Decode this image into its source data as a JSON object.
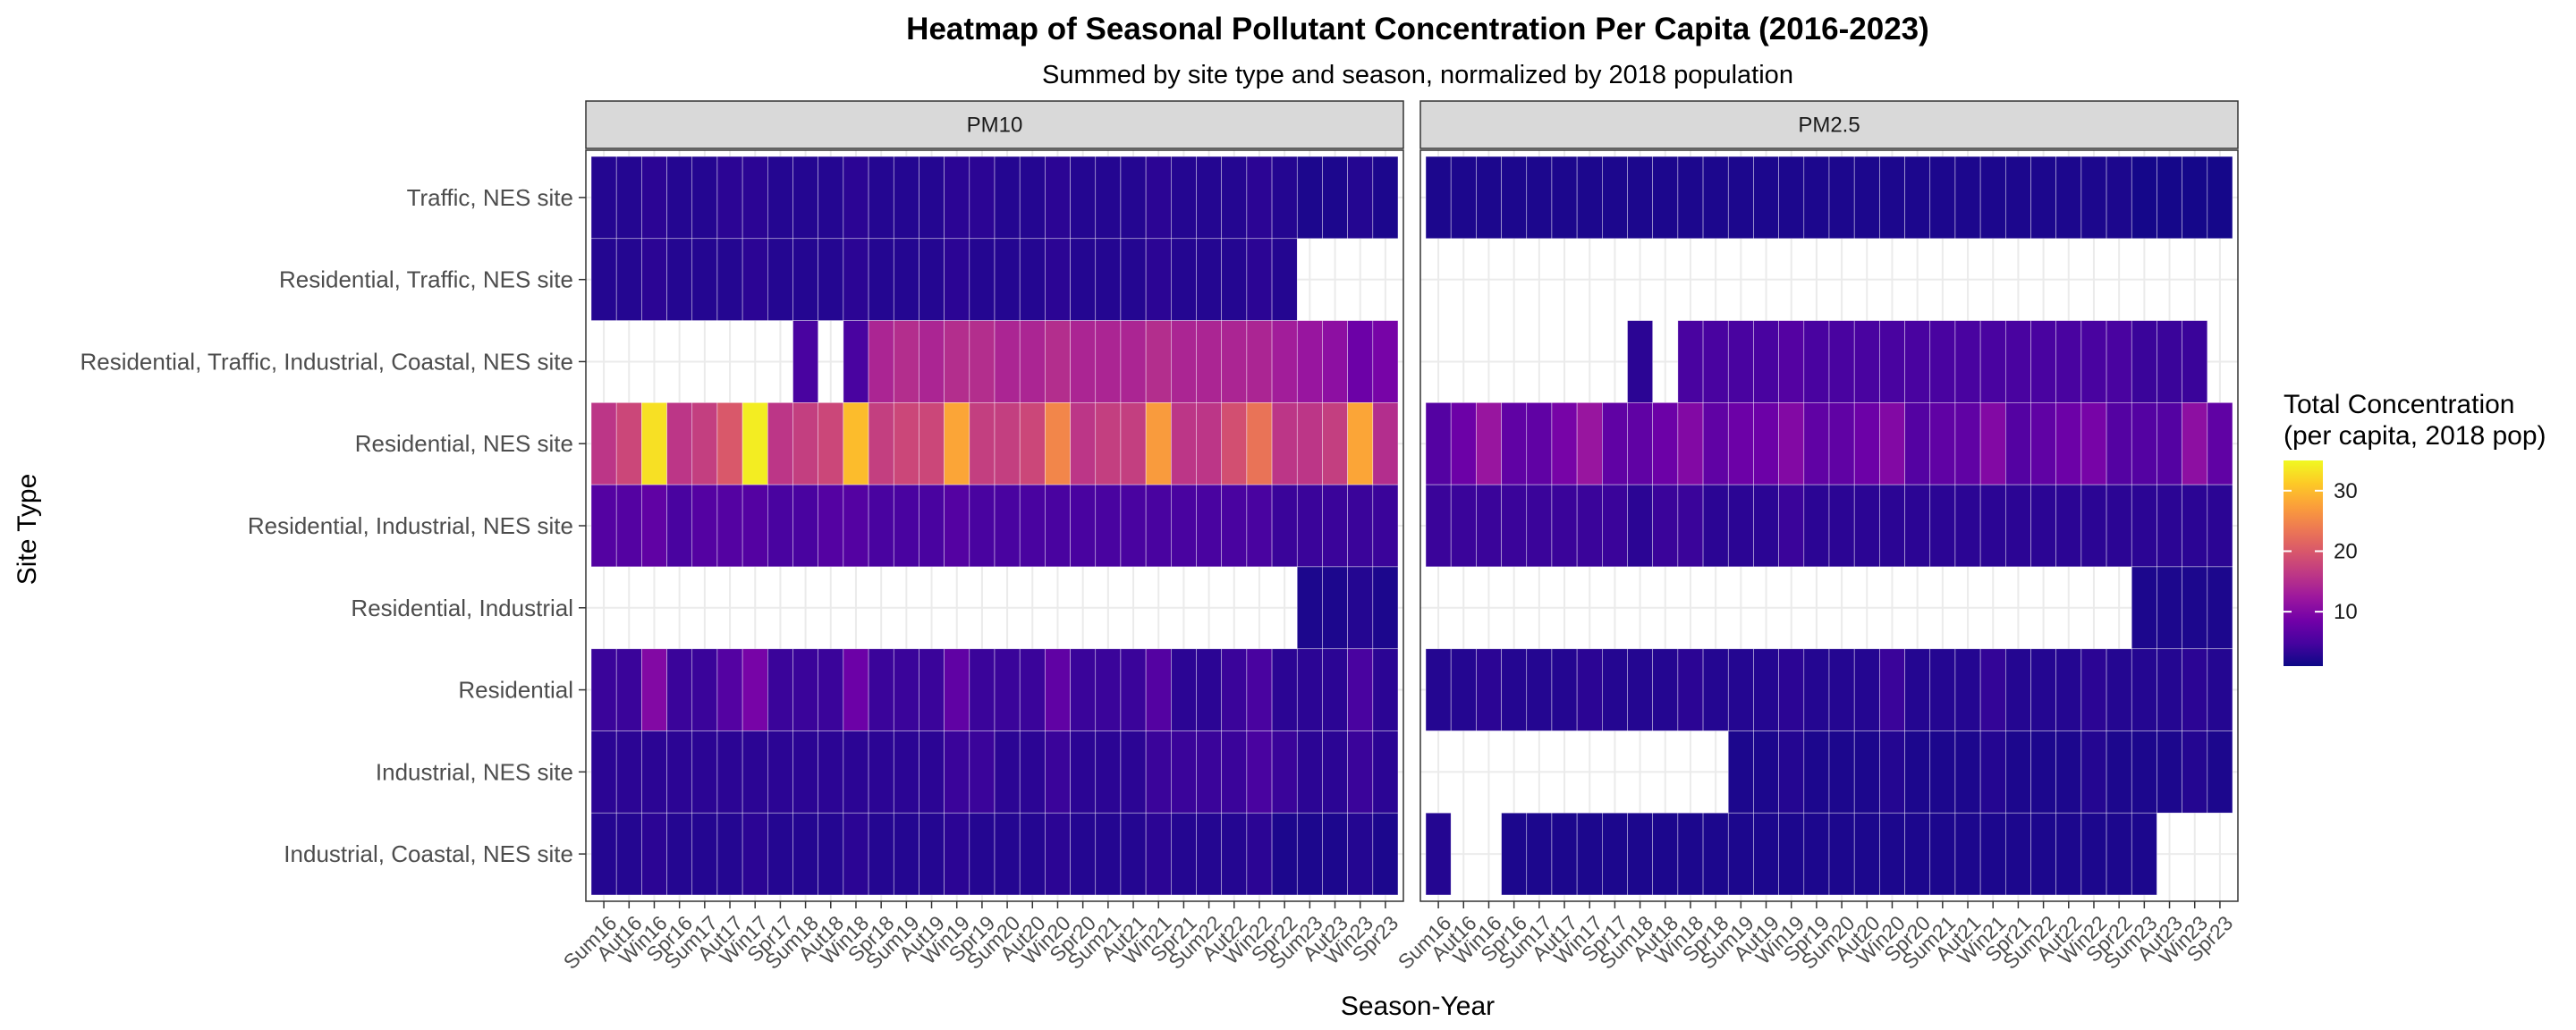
{
  "chart_data": {
    "type": "heatmap",
    "title": "Heatmap of Seasonal Pollutant Concentration Per Capita (2016-2023)",
    "subtitle": "Summed by site type and season, normalized by 2018 population",
    "xlabel": "Season-Year",
    "ylabel": "Site Type",
    "legend": {
      "title_line1": "Total Concentration",
      "title_line2": "(per capita, 2018 pop)",
      "ticks": [
        10,
        20,
        30
      ],
      "range": [
        1,
        35
      ],
      "placement": "right"
    },
    "x_categories": [
      "Sum16",
      "Aut16",
      "Win16",
      "Spr16",
      "Sum17",
      "Aut17",
      "Win17",
      "Spr17",
      "Sum18",
      "Aut18",
      "Win18",
      "Spr18",
      "Sum19",
      "Aut19",
      "Win19",
      "Spr19",
      "Sum20",
      "Aut20",
      "Win20",
      "Spr20",
      "Sum21",
      "Aut21",
      "Win21",
      "Spr21",
      "Sum22",
      "Aut22",
      "Win22",
      "Spr22",
      "Sum23",
      "Aut23",
      "Win23",
      "Spr23"
    ],
    "x_tick_labels": [
      "Sum16",
      "Aut16",
      "Win16",
      "Spr16",
      "Sum17",
      "Aut17",
      "Win17",
      "Spr17",
      "Sum18",
      "Aut18",
      "Win18",
      "Spr18",
      "Sum19",
      "Aut19",
      "Win19",
      "Spr19",
      "Sum20",
      "Aut20",
      "Win20",
      "Spr20",
      "Sum21",
      "Aut21",
      "Win21",
      "Spr21",
      "Sum22",
      "Aut22",
      "Win22",
      "Spr22",
      "Sum23",
      "Aut23",
      "Win23",
      "Spr23"
    ],
    "y_categories": [
      "Traffic, NES site",
      "Residential, Traffic, NES site",
      "Residential, Traffic, Industrial, Coastal, NES site",
      "Residential, NES site",
      "Residential, Industrial, NES site",
      "Residential, Industrial",
      "Residential",
      "Industrial, NES site",
      "Industrial, Coastal, NES site"
    ],
    "facets": [
      {
        "name": "PM10",
        "values": [
          [
            2.5,
            2.5,
            3,
            2.5,
            2.5,
            3,
            3,
            2.5,
            2.5,
            2.5,
            3,
            2.5,
            2.5,
            2.5,
            3,
            3,
            2.5,
            2.5,
            3,
            2.5,
            2.5,
            2.5,
            3,
            2.5,
            2.5,
            2.5,
            3,
            2.5,
            2,
            2,
            2.5,
            2
          ],
          [
            2.5,
            2.5,
            3,
            2.5,
            2.5,
            2.5,
            3,
            2.5,
            2.5,
            2.5,
            3,
            2.5,
            2.5,
            2.5,
            3,
            2.5,
            2.5,
            2.5,
            3,
            2.5,
            2.5,
            2.5,
            3,
            2.5,
            2.5,
            2.5,
            3,
            2.5,
            null,
            null,
            null,
            null
          ],
          [
            null,
            null,
            null,
            null,
            null,
            null,
            null,
            null,
            5,
            null,
            5,
            14,
            15,
            14,
            15,
            15,
            14,
            14,
            15,
            14,
            14,
            14,
            15,
            14,
            14,
            14,
            14,
            13,
            12,
            11,
            8,
            9
          ],
          [
            16,
            18,
            33,
            16,
            17,
            20,
            34,
            16,
            17,
            18,
            30,
            17,
            18,
            18,
            28,
            17,
            17,
            18,
            25,
            16,
            17,
            17,
            27,
            16,
            16,
            19,
            23,
            16,
            16,
            17,
            28,
            15
          ],
          [
            6,
            6,
            7,
            5,
            6,
            6,
            6,
            5,
            5,
            6,
            6,
            5,
            5,
            5,
            6,
            5,
            5,
            5,
            5,
            5,
            5,
            5,
            5,
            5,
            5,
            5,
            5,
            4,
            4,
            4,
            4,
            4
          ],
          [
            null,
            null,
            null,
            null,
            null,
            null,
            null,
            null,
            null,
            null,
            null,
            null,
            null,
            null,
            null,
            null,
            null,
            null,
            null,
            null,
            null,
            null,
            null,
            null,
            null,
            null,
            null,
            null,
            2,
            2,
            2.5,
            2
          ],
          [
            4,
            4,
            10,
            4,
            4,
            6,
            9,
            4,
            4,
            4,
            8,
            4,
            4,
            4,
            7,
            4,
            4,
            4,
            7,
            4,
            4,
            4,
            6,
            3,
            3,
            4,
            5,
            3,
            3,
            3,
            5,
            3
          ],
          [
            3,
            3,
            3,
            3,
            3,
            3,
            3,
            3,
            3,
            3,
            3,
            3,
            3,
            3,
            4,
            4,
            3,
            3,
            4,
            3,
            3,
            3,
            4,
            4,
            4,
            4,
            5,
            4,
            3,
            3,
            4,
            3
          ],
          [
            2.5,
            2.5,
            3,
            2.5,
            2.5,
            2.5,
            3,
            2.5,
            2.5,
            2.5,
            3,
            2.5,
            2.5,
            2.5,
            3,
            2.5,
            2.5,
            2.5,
            3,
            2.5,
            2.5,
            2.5,
            3,
            2.5,
            2.5,
            2.5,
            3,
            2,
            2,
            2,
            2.5,
            2
          ]
        ]
      },
      {
        "name": "PM2.5",
        "values": [
          [
            2,
            2,
            2,
            2,
            2,
            2,
            2,
            2,
            2,
            2,
            2,
            2,
            2,
            2,
            2,
            2,
            2,
            2,
            2,
            2,
            2,
            2,
            2,
            2,
            2,
            2,
            2,
            2,
            1.5,
            1.5,
            1.5,
            1.5
          ],
          [
            null,
            null,
            null,
            null,
            null,
            null,
            null,
            null,
            null,
            null,
            null,
            null,
            null,
            null,
            null,
            null,
            null,
            null,
            null,
            null,
            null,
            null,
            null,
            null,
            null,
            null,
            null,
            null,
            null,
            null,
            null,
            null
          ],
          [
            null,
            null,
            null,
            null,
            null,
            null,
            null,
            null,
            3,
            null,
            5,
            5,
            5,
            5,
            6,
            5,
            5,
            5,
            5,
            5,
            5,
            5,
            5,
            5,
            5,
            5,
            5,
            5,
            4,
            4,
            4,
            null
          ],
          [
            6,
            8,
            12,
            7,
            7,
            9,
            12,
            7,
            7,
            8,
            10,
            7,
            8,
            8,
            10,
            7,
            7,
            8,
            10,
            6,
            7,
            7,
            10,
            6,
            7,
            8,
            9,
            6,
            6,
            6,
            11,
            7
          ],
          [
            4,
            4,
            4,
            4,
            4,
            4,
            4,
            4,
            3,
            4,
            4,
            3,
            3,
            3,
            4,
            3,
            3,
            3,
            3,
            3,
            3,
            3,
            3,
            3,
            3,
            3,
            3,
            3,
            3,
            3,
            3,
            3
          ],
          [
            null,
            null,
            null,
            null,
            null,
            null,
            null,
            null,
            null,
            null,
            null,
            null,
            null,
            null,
            null,
            null,
            null,
            null,
            null,
            null,
            null,
            null,
            null,
            null,
            null,
            null,
            null,
            null,
            2,
            2,
            2,
            2
          ],
          [
            2.5,
            2.5,
            3,
            2.5,
            2.5,
            2.5,
            3,
            2.5,
            2.5,
            2.5,
            3,
            2.5,
            2.5,
            2.5,
            3,
            2.5,
            2.5,
            2.5,
            4,
            2.5,
            2.5,
            2.5,
            3.5,
            2.5,
            2.5,
            2.5,
            3,
            2.5,
            2.5,
            2.5,
            3,
            2.5
          ],
          [
            null,
            null,
            null,
            null,
            null,
            null,
            null,
            null,
            null,
            null,
            null,
            null,
            2,
            2,
            2.5,
            2,
            2,
            2,
            2.5,
            2,
            2,
            2,
            2.5,
            2,
            2,
            2,
            2.5,
            2,
            2,
            2,
            2.5,
            2
          ],
          [
            2.5,
            null,
            null,
            2,
            2,
            2,
            2,
            2,
            2,
            2,
            2,
            2,
            2,
            2,
            2,
            2,
            2,
            2,
            2,
            2,
            2,
            2,
            2,
            2,
            2,
            2,
            2,
            2,
            2,
            null,
            null,
            null
          ]
        ]
      }
    ],
    "colors": {
      "scale": [
        "#0d0887",
        "#46039f",
        "#7201a8",
        "#9c179e",
        "#bd3786",
        "#d8576b",
        "#ed7953",
        "#fb9f3a",
        "#fdca26",
        "#f0f921"
      ],
      "strip_bg": "#d9d9d9",
      "grid": "#ebebeb",
      "panel_border": "#333333"
    }
  }
}
